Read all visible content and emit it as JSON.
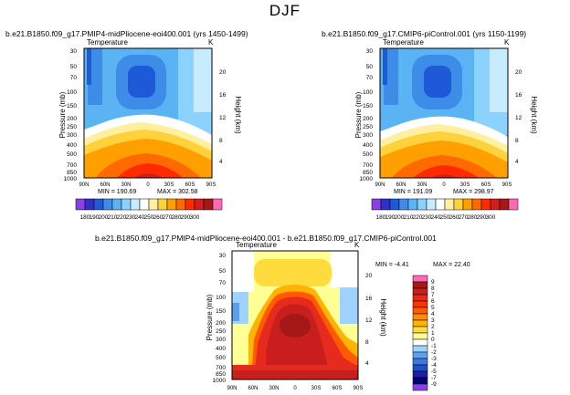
{
  "figure_title": "DJF",
  "chart_data": [
    {
      "type": "heatmap",
      "title": "b.e21.B1850.f09_g17.PMIP4-midPliocene-eoi400.001 (yrs 1450-1499)",
      "subtitle": "Temperature",
      "units": "K",
      "ylabel": "Pressure (mb)",
      "ylabel_right": "Height (km)",
      "xticks": [
        "90N",
        "60N",
        "30N",
        "0",
        "30S",
        "60S",
        "90S"
      ],
      "yticks": [
        "30",
        "50",
        "70",
        "100",
        "150",
        "200",
        "250",
        "300",
        "400",
        "500",
        "700",
        "850",
        "1000"
      ],
      "yticks_right": [
        "20",
        "16",
        "12",
        "8",
        "4"
      ],
      "min_label": "MIN = 190.69",
      "max_label": "MAX = 302.58",
      "colorbar_labels": [
        "180",
        "190",
        "200",
        "210",
        "220",
        "230",
        "240",
        "250",
        "260",
        "270",
        "280",
        "290",
        "300"
      ],
      "colors": [
        "#8b3fe6",
        "#3030c8",
        "#1e5ad8",
        "#3c8ce8",
        "#5ab4f4",
        "#8cd2ff",
        "#c8ecff",
        "#ffffff",
        "#fff0a0",
        "#ffd23c",
        "#ffa000",
        "#ff6a00",
        "#ff2a00",
        "#d21e1e",
        "#a51818",
        "#ff69b4"
      ]
    },
    {
      "type": "heatmap",
      "title": "b.e21.B1850.f09_g17.CMIP6-piControl.001 (yrs 1150-1199)",
      "subtitle": "Temperature",
      "units": "K",
      "ylabel": "Pressure (mb)",
      "ylabel_right": "Height (km)",
      "xticks": [
        "90N",
        "60N",
        "30N",
        "0",
        "30S",
        "60S",
        "90S"
      ],
      "yticks": [
        "30",
        "50",
        "70",
        "100",
        "150",
        "200",
        "250",
        "300",
        "400",
        "500",
        "700",
        "850",
        "1000"
      ],
      "yticks_right": [
        "20",
        "16",
        "12",
        "8",
        "4"
      ],
      "min_label": "MIN = 191.09",
      "max_label": "MAX = 298.97",
      "colorbar_labels": [
        "180",
        "190",
        "200",
        "210",
        "220",
        "230",
        "240",
        "250",
        "260",
        "270",
        "280",
        "290",
        "300"
      ],
      "colors": [
        "#8b3fe6",
        "#3030c8",
        "#1e5ad8",
        "#3c8ce8",
        "#5ab4f4",
        "#8cd2ff",
        "#c8ecff",
        "#ffffff",
        "#fff0a0",
        "#ffd23c",
        "#ffa000",
        "#ff6a00",
        "#ff2a00",
        "#d21e1e",
        "#a51818",
        "#ff69b4"
      ]
    },
    {
      "type": "heatmap",
      "title": "b.e21.B1850.f09_g17.PMIP4-midPliocene-eoi400.001 - b.e21.B1850.f09_g17.CMIP6-piControl.001",
      "subtitle": "Temperature",
      "units": "K",
      "ylabel": "Pressure (mb)",
      "ylabel_right": "Height (km)",
      "xticks": [
        "90N",
        "60N",
        "30N",
        "0",
        "30S",
        "60S",
        "90S"
      ],
      "yticks": [
        "30",
        "50",
        "70",
        "100",
        "150",
        "200",
        "250",
        "300",
        "400",
        "500",
        "700",
        "850",
        "1000"
      ],
      "yticks_right": [
        "20",
        "16",
        "12",
        "8",
        "4"
      ],
      "min_label": "MIN = -4.41",
      "max_label": "MAX = 22.40",
      "colorbar_labels": [
        "9",
        "8",
        "7",
        "6",
        "5",
        "4",
        "3",
        "2",
        "1",
        "0",
        "-1",
        "-2",
        "-3",
        "-4",
        "-5",
        "-7",
        "-9"
      ],
      "colors": [
        "#ff69b4",
        "#a51818",
        "#c81e1e",
        "#e62a1e",
        "#ff3200",
        "#ff5a00",
        "#ff8c00",
        "#ffb400",
        "#ffdc3c",
        "#ffff96",
        "#ffffff",
        "#a0d2ff",
        "#5aa0f0",
        "#3c78dc",
        "#1e50c8",
        "#1e1ea0",
        "#000078",
        "#8b3fe6"
      ]
    }
  ]
}
